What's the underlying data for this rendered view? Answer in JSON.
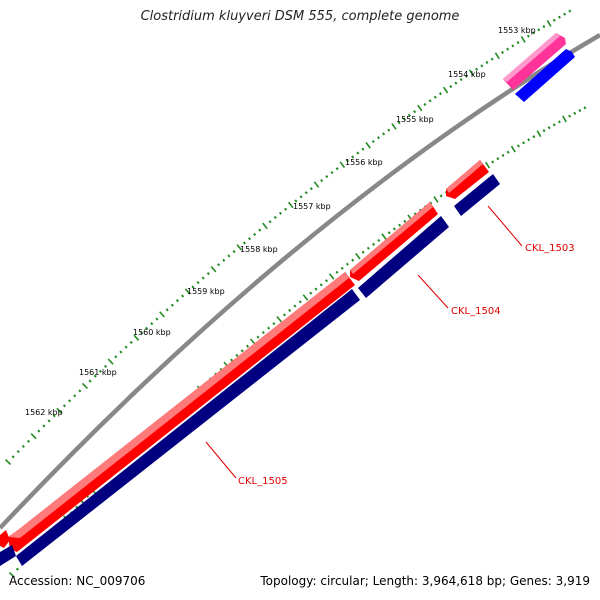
{
  "title": "Clostridium kluyveri DSM 555, complete genome",
  "footer": {
    "accession": "Accession: NC_009706",
    "summary": "Topology: circular; Length: 3,964,618 bp; Genes: 3,919"
  },
  "ticks": [
    {
      "label": "1553 kbp"
    },
    {
      "label": "1554 kbp"
    },
    {
      "label": "1555 kbp"
    },
    {
      "label": "1556 kbp"
    },
    {
      "label": "1557 kbp"
    },
    {
      "label": "1558 kbp"
    },
    {
      "label": "1559 kbp"
    },
    {
      "label": "1560 kbp"
    },
    {
      "label": "1561 kbp"
    },
    {
      "label": "1562 kbp"
    }
  ],
  "genes": [
    {
      "label": "CKL_1503"
    },
    {
      "label": "CKL_1504"
    },
    {
      "label": "CKL_1505"
    }
  ],
  "colors": {
    "backbone": "#888888",
    "cds_forward": "#ff0000",
    "gene_forward": "#000080",
    "rrna_feature": "#ff3399",
    "rrna_gene": "#0000ff",
    "tick": "#228b22",
    "gene_label": "#e00000"
  }
}
